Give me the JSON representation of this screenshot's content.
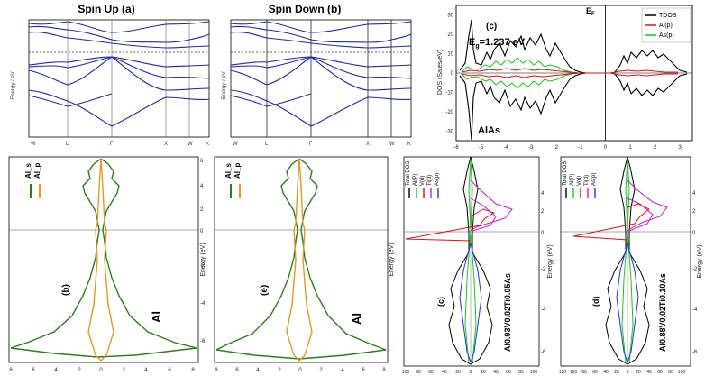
{
  "chart_data": [
    {
      "id": "spin-up",
      "type": "line",
      "title": "Spin Up (a)",
      "ylabel": "Energy / eV",
      "x_ticks": [
        "W",
        "L",
        "Γ",
        "X",
        "W",
        "K"
      ],
      "fermi_level_dashed": true
    },
    {
      "id": "spin-down",
      "type": "line",
      "title": "Spin Down (b)",
      "ylabel": "Energy / eV",
      "x_ticks": [
        "W",
        "L",
        "Γ",
        "X",
        "W",
        "K"
      ],
      "fermi_level_dashed": true
    },
    {
      "id": "alas-dos",
      "type": "line",
      "panel_label": "(c)",
      "annotation": "E_g=1.237 eV",
      "annotation_main": "E",
      "annotation_sub": "g",
      "annotation_rest": "=1.237 eV",
      "material": "AlAs",
      "fermi_label_main": "E",
      "fermi_label_sub": "F",
      "ylabel": "DOS (Sates/eV)",
      "xlim": [
        -6,
        3.5
      ],
      "ylim": [
        -35,
        35
      ],
      "x_ticks": [
        "-6",
        "-5",
        "-4",
        "-3",
        "-2",
        "-1",
        "0",
        "1",
        "2",
        "3"
      ],
      "y_ticks": [
        "30",
        "20",
        "10",
        "0",
        "-10",
        "-20",
        "-30"
      ],
      "legend": [
        "TDOS",
        "Al(p)",
        "As(p)"
      ],
      "colors": {
        "TDOS": "#000000",
        "Al(p)": "#d11a1a",
        "As(p)": "#1fc41f"
      }
    },
    {
      "id": "al-dos-b",
      "type": "line",
      "panel_label": "(b)",
      "material": "Al",
      "ylabel": "Energy (eV)",
      "legend": [
        "Al_s",
        "Al_p"
      ],
      "y_ticks": [
        "6",
        "4",
        "2",
        "0",
        "-2",
        "-4",
        "-6"
      ],
      "x_ticks": [
        "8",
        "6",
        "4",
        "2",
        "0",
        "2",
        "4",
        "6",
        "8"
      ],
      "colors": {
        "Al_s": "#2e7d1e",
        "Al_p": "#e09a2a"
      }
    },
    {
      "id": "al-dos-e",
      "type": "line",
      "panel_label": "(e)",
      "material": "Al",
      "ylabel": "Energy (eV)",
      "legend": [
        "Al_s",
        "Al_p"
      ],
      "y_ticks": [
        "6",
        "4",
        "2",
        "0",
        "-2",
        "-4",
        "-6"
      ],
      "x_ticks": [
        "8",
        "6",
        "4",
        "2",
        "0",
        "2",
        "4",
        "6",
        "8"
      ],
      "colors": {
        "Al_s": "#2e7d1e",
        "Al_p": "#e09a2a"
      }
    },
    {
      "id": "alvtias-c",
      "type": "line",
      "panel_label": "(c)",
      "formula": "Al0.93V0.02Ti0.05As",
      "ylabel": "Energy (eV)",
      "legend": [
        "Total DOS",
        "Al(P)",
        "V(d)",
        "Ti(d)",
        "As(p)"
      ],
      "y_ticks": [
        "4",
        "2",
        "0",
        "-2",
        "-4",
        "-6"
      ],
      "x_ticks": [
        "100",
        "80",
        "60",
        "40",
        "20",
        "0",
        "20",
        "40",
        "60",
        "80",
        "100"
      ],
      "colors": {
        "Total DOS": "#000000",
        "Al(P)": "#1fc41f",
        "V(d)": "#d11a1a",
        "Ti(d)": "#d11ad1",
        "As(p)": "#1a3ad1"
      }
    },
    {
      "id": "alvtias-d",
      "type": "line",
      "panel_label": "(d)",
      "formula": "Al0.88V0.02Ti0.10As",
      "ylabel": "Energy (eV)",
      "legend": [
        "Total DOS",
        "Al(P)",
        "V(d)",
        "Ti(d)",
        "As(p)"
      ],
      "y_ticks": [
        "4",
        "2",
        "0",
        "-2",
        "-4",
        "-6"
      ],
      "x_ticks": [
        "120",
        "100",
        "80",
        "60",
        "40",
        "20",
        "0",
        "20",
        "40",
        "60",
        "80",
        "100"
      ],
      "colors": {
        "Total DOS": "#000000",
        "Al(P)": "#1fc41f",
        "V(d)": "#d11a1a",
        "Ti(d)": "#d11ad1",
        "As(p)": "#1a3ad1"
      }
    }
  ]
}
